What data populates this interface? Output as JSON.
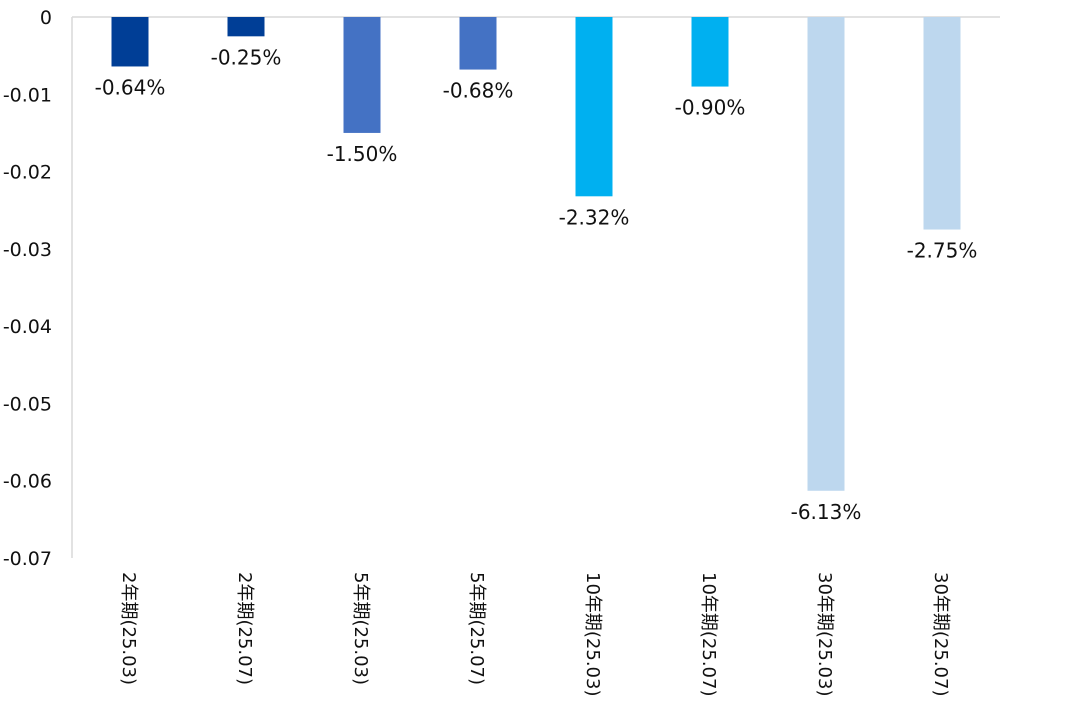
{
  "chart_data": {
    "type": "bar",
    "title": "",
    "xlabel": "",
    "ylabel": "",
    "categories": [
      "2年期(25.03)",
      "2年期(25.07)",
      "5年期(25.03)",
      "5年期(25.07)",
      "10年期(25.03)",
      "10年期(25.07)",
      "30年期(25.03)",
      "30年期(25.07)"
    ],
    "values": [
      -0.0064,
      -0.0025,
      -0.015,
      -0.0068,
      -0.0232,
      -0.009,
      -0.0613,
      -0.0275
    ],
    "data_labels": [
      "-0.64%",
      "-0.25%",
      "-1.50%",
      "-0.68%",
      "-2.32%",
      "-0.90%",
      "-6.13%",
      "-2.75%"
    ],
    "bar_colors": [
      "#003e96",
      "#003e96",
      "#4472c4",
      "#4472c4",
      "#00b0f0",
      "#00b0f0",
      "#bdd7ee",
      "#bdd7ee"
    ],
    "ylim": [
      -0.07,
      0
    ],
    "yticks": [
      0,
      -0.01,
      -0.02,
      -0.03,
      -0.04,
      -0.05,
      -0.06,
      -0.07
    ],
    "ytick_labels": [
      "0",
      "-0.01",
      "-0.02",
      "-0.03",
      "-0.04",
      "-0.05",
      "-0.06",
      "-0.07"
    ],
    "grid": false,
    "legend": "none"
  }
}
